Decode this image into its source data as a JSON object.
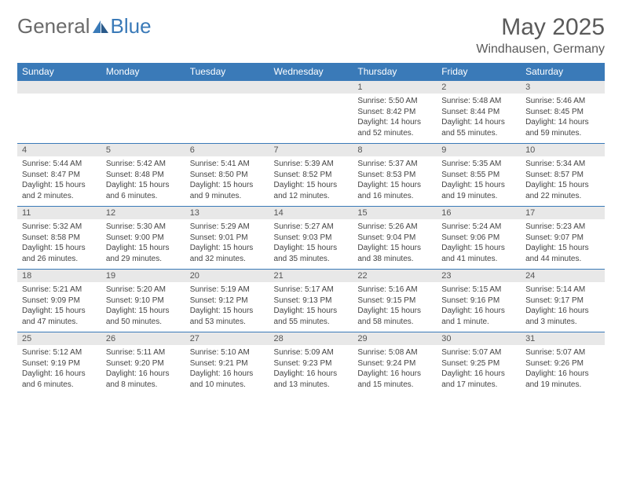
{
  "logo": {
    "text_general": "General",
    "text_blue": "Blue"
  },
  "header": {
    "month_title": "May 2025",
    "location": "Windhausen, Germany"
  },
  "colors": {
    "header_bg": "#3a7ab8",
    "header_text": "#ffffff",
    "daynum_bg": "#e8e8e8",
    "row_border": "#3a7ab8",
    "body_text": "#444444"
  },
  "day_headers": [
    "Sunday",
    "Monday",
    "Tuesday",
    "Wednesday",
    "Thursday",
    "Friday",
    "Saturday"
  ],
  "weeks": [
    {
      "nums": [
        "",
        "",
        "",
        "",
        "1",
        "2",
        "3"
      ],
      "cells": [
        {},
        {},
        {},
        {},
        {
          "sunrise": "Sunrise: 5:50 AM",
          "sunset": "Sunset: 8:42 PM",
          "daylight1": "Daylight: 14 hours",
          "daylight2": "and 52 minutes."
        },
        {
          "sunrise": "Sunrise: 5:48 AM",
          "sunset": "Sunset: 8:44 PM",
          "daylight1": "Daylight: 14 hours",
          "daylight2": "and 55 minutes."
        },
        {
          "sunrise": "Sunrise: 5:46 AM",
          "sunset": "Sunset: 8:45 PM",
          "daylight1": "Daylight: 14 hours",
          "daylight2": "and 59 minutes."
        }
      ]
    },
    {
      "nums": [
        "4",
        "5",
        "6",
        "7",
        "8",
        "9",
        "10"
      ],
      "cells": [
        {
          "sunrise": "Sunrise: 5:44 AM",
          "sunset": "Sunset: 8:47 PM",
          "daylight1": "Daylight: 15 hours",
          "daylight2": "and 2 minutes."
        },
        {
          "sunrise": "Sunrise: 5:42 AM",
          "sunset": "Sunset: 8:48 PM",
          "daylight1": "Daylight: 15 hours",
          "daylight2": "and 6 minutes."
        },
        {
          "sunrise": "Sunrise: 5:41 AM",
          "sunset": "Sunset: 8:50 PM",
          "daylight1": "Daylight: 15 hours",
          "daylight2": "and 9 minutes."
        },
        {
          "sunrise": "Sunrise: 5:39 AM",
          "sunset": "Sunset: 8:52 PM",
          "daylight1": "Daylight: 15 hours",
          "daylight2": "and 12 minutes."
        },
        {
          "sunrise": "Sunrise: 5:37 AM",
          "sunset": "Sunset: 8:53 PM",
          "daylight1": "Daylight: 15 hours",
          "daylight2": "and 16 minutes."
        },
        {
          "sunrise": "Sunrise: 5:35 AM",
          "sunset": "Sunset: 8:55 PM",
          "daylight1": "Daylight: 15 hours",
          "daylight2": "and 19 minutes."
        },
        {
          "sunrise": "Sunrise: 5:34 AM",
          "sunset": "Sunset: 8:57 PM",
          "daylight1": "Daylight: 15 hours",
          "daylight2": "and 22 minutes."
        }
      ]
    },
    {
      "nums": [
        "11",
        "12",
        "13",
        "14",
        "15",
        "16",
        "17"
      ],
      "cells": [
        {
          "sunrise": "Sunrise: 5:32 AM",
          "sunset": "Sunset: 8:58 PM",
          "daylight1": "Daylight: 15 hours",
          "daylight2": "and 26 minutes."
        },
        {
          "sunrise": "Sunrise: 5:30 AM",
          "sunset": "Sunset: 9:00 PM",
          "daylight1": "Daylight: 15 hours",
          "daylight2": "and 29 minutes."
        },
        {
          "sunrise": "Sunrise: 5:29 AM",
          "sunset": "Sunset: 9:01 PM",
          "daylight1": "Daylight: 15 hours",
          "daylight2": "and 32 minutes."
        },
        {
          "sunrise": "Sunrise: 5:27 AM",
          "sunset": "Sunset: 9:03 PM",
          "daylight1": "Daylight: 15 hours",
          "daylight2": "and 35 minutes."
        },
        {
          "sunrise": "Sunrise: 5:26 AM",
          "sunset": "Sunset: 9:04 PM",
          "daylight1": "Daylight: 15 hours",
          "daylight2": "and 38 minutes."
        },
        {
          "sunrise": "Sunrise: 5:24 AM",
          "sunset": "Sunset: 9:06 PM",
          "daylight1": "Daylight: 15 hours",
          "daylight2": "and 41 minutes."
        },
        {
          "sunrise": "Sunrise: 5:23 AM",
          "sunset": "Sunset: 9:07 PM",
          "daylight1": "Daylight: 15 hours",
          "daylight2": "and 44 minutes."
        }
      ]
    },
    {
      "nums": [
        "18",
        "19",
        "20",
        "21",
        "22",
        "23",
        "24"
      ],
      "cells": [
        {
          "sunrise": "Sunrise: 5:21 AM",
          "sunset": "Sunset: 9:09 PM",
          "daylight1": "Daylight: 15 hours",
          "daylight2": "and 47 minutes."
        },
        {
          "sunrise": "Sunrise: 5:20 AM",
          "sunset": "Sunset: 9:10 PM",
          "daylight1": "Daylight: 15 hours",
          "daylight2": "and 50 minutes."
        },
        {
          "sunrise": "Sunrise: 5:19 AM",
          "sunset": "Sunset: 9:12 PM",
          "daylight1": "Daylight: 15 hours",
          "daylight2": "and 53 minutes."
        },
        {
          "sunrise": "Sunrise: 5:17 AM",
          "sunset": "Sunset: 9:13 PM",
          "daylight1": "Daylight: 15 hours",
          "daylight2": "and 55 minutes."
        },
        {
          "sunrise": "Sunrise: 5:16 AM",
          "sunset": "Sunset: 9:15 PM",
          "daylight1": "Daylight: 15 hours",
          "daylight2": "and 58 minutes."
        },
        {
          "sunrise": "Sunrise: 5:15 AM",
          "sunset": "Sunset: 9:16 PM",
          "daylight1": "Daylight: 16 hours",
          "daylight2": "and 1 minute."
        },
        {
          "sunrise": "Sunrise: 5:14 AM",
          "sunset": "Sunset: 9:17 PM",
          "daylight1": "Daylight: 16 hours",
          "daylight2": "and 3 minutes."
        }
      ]
    },
    {
      "nums": [
        "25",
        "26",
        "27",
        "28",
        "29",
        "30",
        "31"
      ],
      "cells": [
        {
          "sunrise": "Sunrise: 5:12 AM",
          "sunset": "Sunset: 9:19 PM",
          "daylight1": "Daylight: 16 hours",
          "daylight2": "and 6 minutes."
        },
        {
          "sunrise": "Sunrise: 5:11 AM",
          "sunset": "Sunset: 9:20 PM",
          "daylight1": "Daylight: 16 hours",
          "daylight2": "and 8 minutes."
        },
        {
          "sunrise": "Sunrise: 5:10 AM",
          "sunset": "Sunset: 9:21 PM",
          "daylight1": "Daylight: 16 hours",
          "daylight2": "and 10 minutes."
        },
        {
          "sunrise": "Sunrise: 5:09 AM",
          "sunset": "Sunset: 9:23 PM",
          "daylight1": "Daylight: 16 hours",
          "daylight2": "and 13 minutes."
        },
        {
          "sunrise": "Sunrise: 5:08 AM",
          "sunset": "Sunset: 9:24 PM",
          "daylight1": "Daylight: 16 hours",
          "daylight2": "and 15 minutes."
        },
        {
          "sunrise": "Sunrise: 5:07 AM",
          "sunset": "Sunset: 9:25 PM",
          "daylight1": "Daylight: 16 hours",
          "daylight2": "and 17 minutes."
        },
        {
          "sunrise": "Sunrise: 5:07 AM",
          "sunset": "Sunset: 9:26 PM",
          "daylight1": "Daylight: 16 hours",
          "daylight2": "and 19 minutes."
        }
      ]
    }
  ]
}
